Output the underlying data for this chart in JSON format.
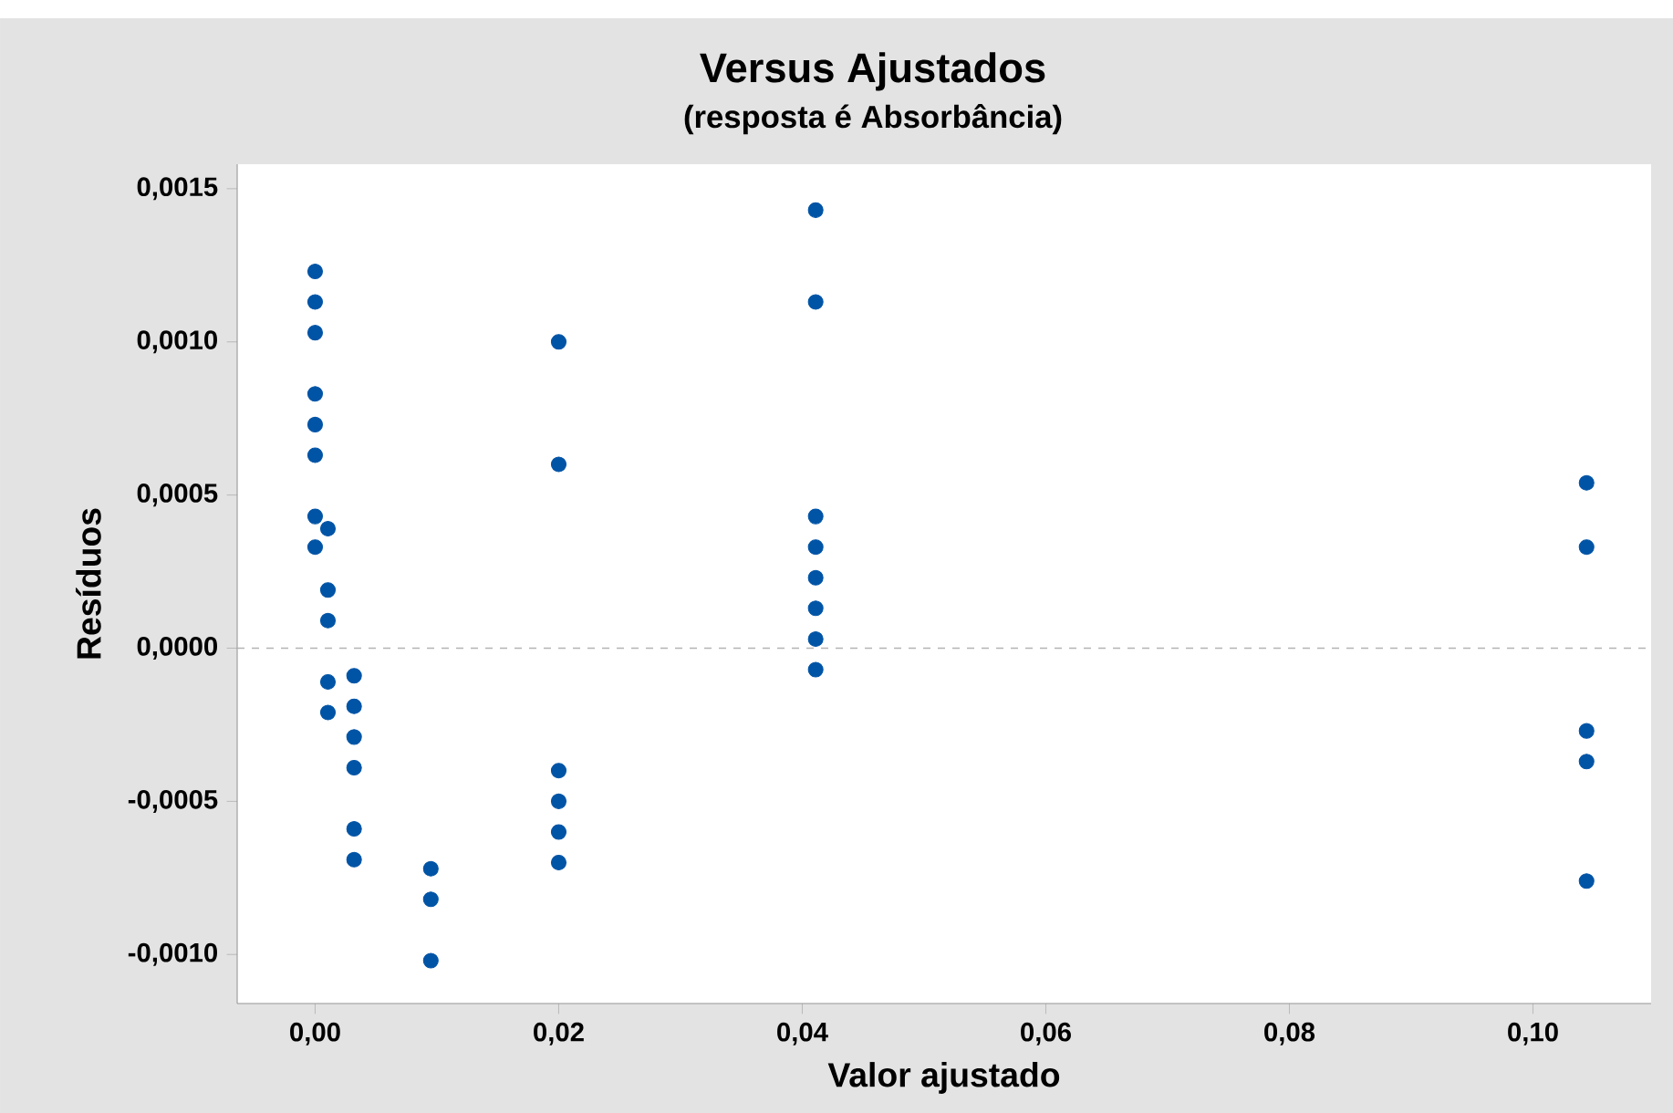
{
  "chart_data": {
    "type": "scatter",
    "title": "Versus Ajustados",
    "subtitle": "(resposta é Absorbância)",
    "xlabel": "Valor ajustado",
    "ylabel": "Resíduos",
    "series": [
      {
        "color": "#0054a6",
        "x": [
          0.0,
          0.0,
          0.0,
          0.0,
          0.0,
          0.0,
          0.0,
          0.0,
          0.00105,
          0.00105,
          0.00105,
          0.00105,
          0.00105,
          0.0032,
          0.0032,
          0.0032,
          0.0032,
          0.0032,
          0.0032,
          0.0095,
          0.0095,
          0.0095,
          0.02,
          0.02,
          0.02,
          0.02,
          0.02,
          0.02,
          0.0411,
          0.0411,
          0.0411,
          0.0411,
          0.0411,
          0.0411,
          0.0411,
          0.0411,
          0.1044,
          0.1044,
          0.1044,
          0.1044,
          0.1044
        ],
        "values": [
          0.00123,
          0.00113,
          0.00103,
          0.00083,
          0.00073,
          0.00063,
          0.00043,
          0.00033,
          0.00039,
          0.00019,
          9e-05,
          -0.00011,
          -0.00021,
          -9e-05,
          -0.00019,
          -0.00029,
          -0.00039,
          -0.00059,
          -0.00069,
          -0.00072,
          -0.00082,
          -0.00102,
          0.001,
          0.0006,
          -0.0004,
          -0.0005,
          -0.0006,
          -0.0007,
          0.00143,
          0.00113,
          0.00043,
          0.00033,
          0.00023,
          0.00013,
          3e-05,
          -7e-05,
          0.00054,
          0.00033,
          -0.00027,
          -0.00037,
          -0.00076
        ]
      }
    ],
    "marker": "circle",
    "xlim": [
      -0.0064,
      0.1097
    ],
    "ylim": [
      -0.00116,
      0.00158
    ],
    "xticks": [
      {
        "value": 0,
        "label": "0,00"
      },
      {
        "value": 0.02,
        "label": "0,02"
      },
      {
        "value": 0.04,
        "label": "0,04"
      },
      {
        "value": 0.06,
        "label": "0,06"
      },
      {
        "value": 0.08,
        "label": "0,08"
      },
      {
        "value": 0.1,
        "label": "0,10"
      }
    ],
    "yticks": [
      {
        "value": -0.001,
        "label": "-0,0010"
      },
      {
        "value": -0.0005,
        "label": "-0,0005"
      },
      {
        "value": 0,
        "label": "0,0000"
      },
      {
        "value": 0.0005,
        "label": "0,0005"
      },
      {
        "value": 0.001,
        "label": "0,0010"
      },
      {
        "value": 0.0015,
        "label": "0,0015"
      }
    ],
    "ref_lines": [
      {
        "axis": "y",
        "value": 0,
        "color": "#b4b4b4",
        "line_style": "dashed"
      }
    ]
  }
}
